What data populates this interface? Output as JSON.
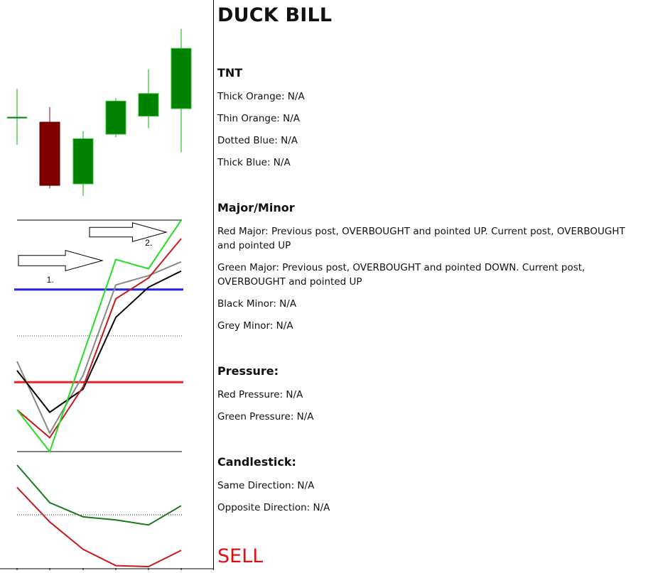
{
  "title": "DUCK BILL",
  "sections": {
    "tnt": {
      "heading": "TNT",
      "lines": [
        "Thick Orange: N/A",
        "Thin Orange: N/A",
        "Dotted Blue: N/A",
        "Thick Blue: N/A"
      ]
    },
    "major_minor": {
      "heading": "Major/Minor",
      "lines": [
        "Red Major: Previous post, OVERBOUGHT and pointed UP. Current post, OVERBOUGHT and pointed UP",
        "Green Major: Previous post, OVERBOUGHT and pointed DOWN. Current post, OVERBOUGHT and pointed UP",
        "Black Minor: N/A",
        "Grey Minor:  N/A"
      ]
    },
    "pressure": {
      "heading": "Pressure:",
      "lines": [
        "Red Pressure: N/A",
        "Green Pressure: N/A"
      ]
    },
    "candlestick": {
      "heading": "Candlestick:",
      "lines": [
        "Same Direction: N/A",
        "Opposite Direction: N/A"
      ]
    }
  },
  "signal": "SELL",
  "colors": {
    "bull": "#008000",
    "bear": "#800000",
    "signal": "#e01010",
    "line_red": "#c41b1b",
    "line_green": "#22dd22",
    "line_grey": "#888888",
    "line_black": "#000000",
    "band_blue": "#2222ee",
    "band_red": "#ee2222",
    "pressure_green": "#1a7a1a",
    "pressure_red": "#cc1a1a"
  },
  "chart_data": [
    {
      "type": "candlestick",
      "ylim": [
        0,
        100
      ],
      "candles": [
        {
          "open": 36,
          "close": 36,
          "high": 55,
          "low": 18
        },
        {
          "open": 33,
          "close": -9,
          "high": 43,
          "low": -11
        },
        {
          "open": -8,
          "close": 22,
          "high": 27,
          "low": -16
        },
        {
          "open": 25,
          "close": 47,
          "high": 49,
          "low": 23
        },
        {
          "open": 37,
          "close": 52,
          "high": 68,
          "low": 29
        },
        {
          "open": 42,
          "close": 82,
          "high": 95,
          "low": 13
        }
      ]
    },
    {
      "type": "line",
      "x": [
        0,
        1,
        2,
        3,
        4,
        5
      ],
      "ylim": [
        0,
        100
      ],
      "reference_lines": [
        {
          "y": 100,
          "style": "solid"
        },
        {
          "y": 70,
          "style": "glow",
          "color": "blue"
        },
        {
          "y": 50,
          "style": "dotted"
        },
        {
          "y": 30,
          "style": "glow",
          "color": "red"
        },
        {
          "y": 0,
          "style": "solid"
        }
      ],
      "series": [
        {
          "color": "green",
          "values": [
            18,
            0,
            42,
            83,
            79,
            100
          ]
        },
        {
          "color": "red",
          "values": [
            18,
            6,
            28,
            66,
            75,
            92
          ]
        },
        {
          "color": "grey",
          "values": [
            39,
            8,
            33,
            72,
            76,
            82
          ]
        },
        {
          "color": "black",
          "values": [
            35,
            17,
            27,
            58,
            71,
            78
          ]
        }
      ],
      "annotations": [
        {
          "label": "1.",
          "x": 0.9,
          "y": 73
        },
        {
          "label": "2.",
          "x": 3.9,
          "y": 89
        }
      ]
    },
    {
      "type": "line",
      "x": [
        0,
        1,
        2,
        3,
        4,
        5
      ],
      "ylim": [
        0,
        100
      ],
      "reference_lines": [
        {
          "y": 51,
          "style": "dotted"
        }
      ],
      "series": [
        {
          "color": "green",
          "values": [
            100,
            63,
            49,
            46,
            41,
            60
          ]
        },
        {
          "color": "red",
          "values": [
            78,
            44,
            17,
            1,
            0,
            16
          ]
        }
      ]
    }
  ]
}
